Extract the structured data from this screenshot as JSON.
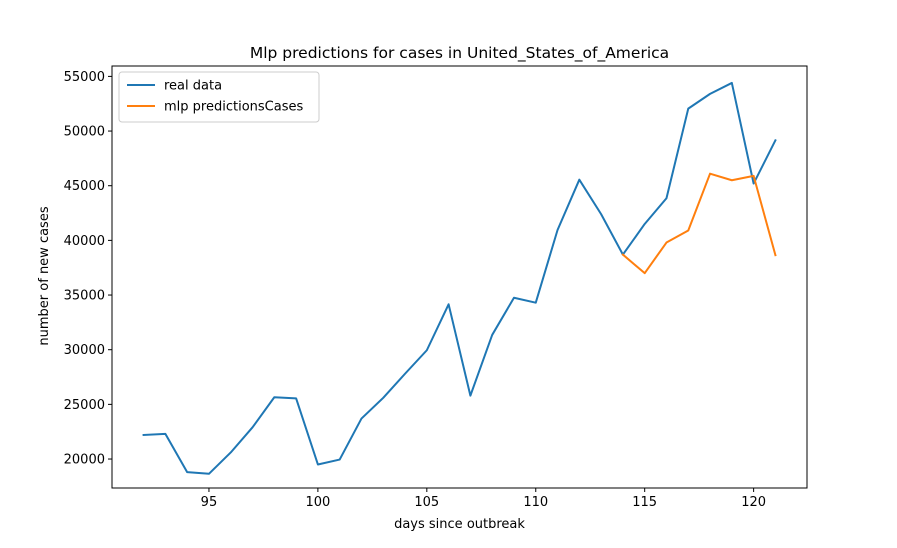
{
  "chart_data": {
    "type": "line",
    "title": "Mlp predictions for cases in  United_States_of_America",
    "xlabel": "days since outbreak",
    "ylabel": "number of new cases",
    "xlim": [
      90.55,
      122.45
    ],
    "ylim": [
      17350,
      55950
    ],
    "xticks": [
      95,
      100,
      105,
      110,
      115,
      120
    ],
    "yticks": [
      20000,
      25000,
      30000,
      35000,
      40000,
      45000,
      50000,
      55000
    ],
    "grid": false,
    "legend_position": "upper left",
    "series": [
      {
        "name": "real data",
        "color": "#1f77b4",
        "x": [
          92,
          93,
          94,
          95,
          96,
          97,
          98,
          99,
          100,
          101,
          102,
          103,
          104,
          105,
          106,
          107,
          108,
          109,
          110,
          111,
          112,
          113,
          114,
          115,
          116,
          117,
          118,
          119,
          120,
          121
        ],
        "y": [
          22200,
          22300,
          18800,
          18650,
          20600,
          22900,
          25650,
          25550,
          19500,
          19950,
          23700,
          25600,
          27800,
          29950,
          34150,
          25800,
          31350,
          34750,
          34300,
          40950,
          45550,
          42400,
          38700,
          41500,
          43850,
          52050,
          53400,
          54400,
          45200,
          49150
        ]
      },
      {
        "name": "mlp predictionsCases",
        "color": "#ff7f0e",
        "x": [
          114,
          115,
          116,
          117,
          118,
          119,
          120,
          121
        ],
        "y": [
          38700,
          37000,
          39800,
          40900,
          46100,
          45500,
          45900,
          38650
        ]
      }
    ]
  }
}
